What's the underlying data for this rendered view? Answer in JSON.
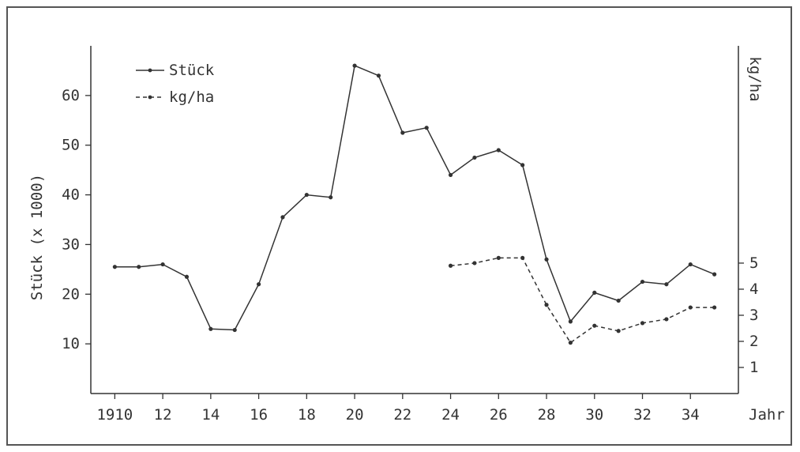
{
  "chart_data": {
    "type": "line",
    "xlabel": "Jahr",
    "ylabel_left": "Stück (x 1000)",
    "ylabel_right": "kg/ha",
    "x_ticks": [
      {
        "value": 1910,
        "label": "1910"
      },
      {
        "value": 1912,
        "label": "12"
      },
      {
        "value": 1914,
        "label": "14"
      },
      {
        "value": 1916,
        "label": "16"
      },
      {
        "value": 1918,
        "label": "18"
      },
      {
        "value": 1920,
        "label": "20"
      },
      {
        "value": 1922,
        "label": "22"
      },
      {
        "value": 1924,
        "label": "24"
      },
      {
        "value": 1926,
        "label": "26"
      },
      {
        "value": 1928,
        "label": "28"
      },
      {
        "value": 1930,
        "label": "30"
      },
      {
        "value": 1932,
        "label": "32"
      },
      {
        "value": 1934,
        "label": "34"
      }
    ],
    "xlim": [
      1909,
      1936
    ],
    "y_left_ticks": [
      10,
      20,
      30,
      40,
      50,
      60
    ],
    "y_left_lim": [
      0,
      70
    ],
    "y_right_ticks": [
      1,
      2,
      3,
      4,
      5
    ],
    "y_right_lim": [
      0,
      13.33
    ],
    "legend": {
      "position": "top-left"
    },
    "series": [
      {
        "name": "Stück",
        "axis": "left",
        "style": "solid",
        "x": [
          1910,
          1911,
          1912,
          1913,
          1914,
          1915,
          1916,
          1917,
          1918,
          1919,
          1920,
          1921,
          1922,
          1923,
          1924,
          1925,
          1926,
          1927,
          1928,
          1929,
          1930,
          1931,
          1932,
          1933,
          1934,
          1935
        ],
        "values": [
          25.5,
          25.5,
          26,
          23.5,
          13,
          12.8,
          22,
          35.5,
          40,
          39.5,
          66,
          64,
          52.5,
          53.5,
          44,
          47.5,
          49,
          46,
          27,
          14.5,
          20.3,
          18.7,
          22.5,
          22,
          26,
          24
        ]
      },
      {
        "name": "kg/ha",
        "axis": "right",
        "style": "dashed",
        "x": [
          1924,
          1925,
          1926,
          1927,
          1928,
          1929,
          1930,
          1931,
          1932,
          1933,
          1934,
          1935
        ],
        "values": [
          4.9,
          5.0,
          5.2,
          5.2,
          3.4,
          1.95,
          2.6,
          2.4,
          2.7,
          2.85,
          3.3,
          3.3
        ]
      }
    ]
  }
}
